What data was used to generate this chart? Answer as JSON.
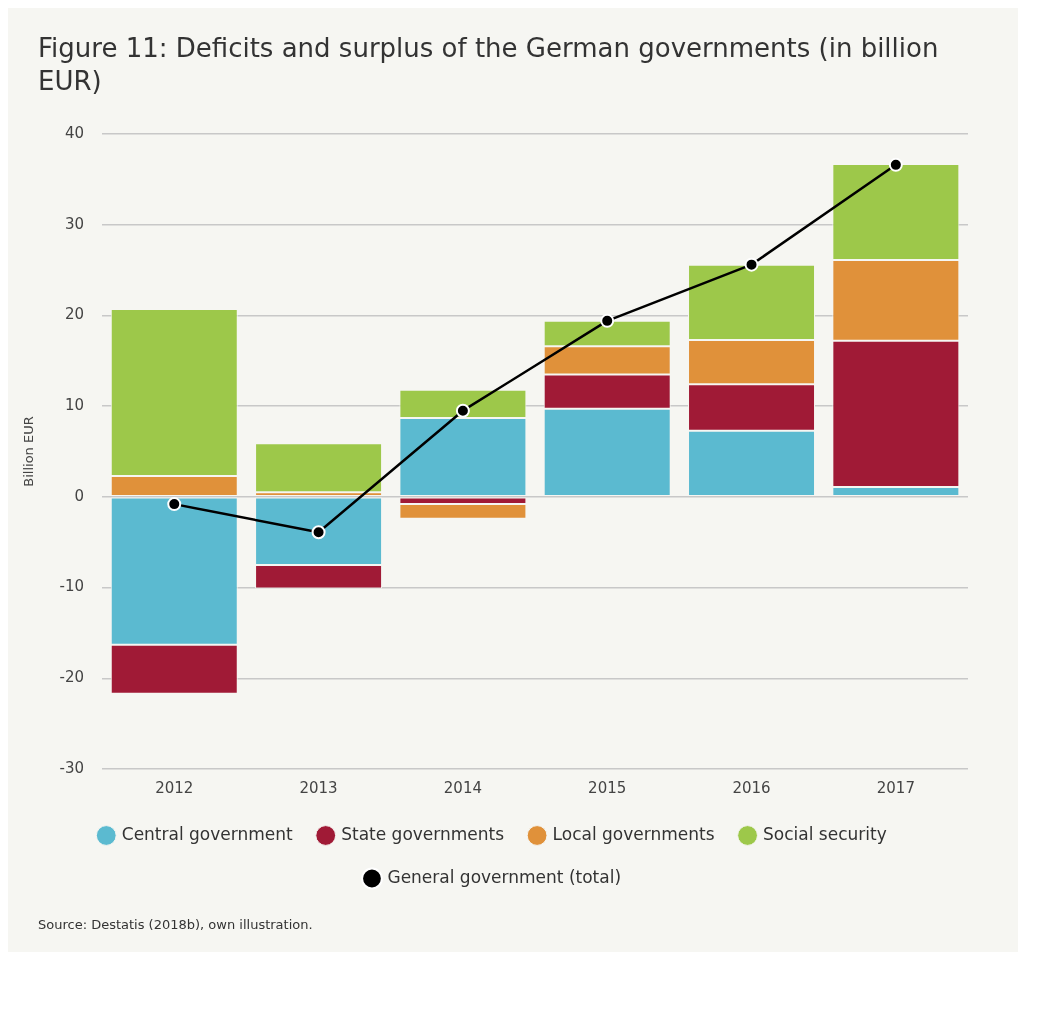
{
  "chart_data": {
    "type": "bar",
    "title": "Figure 11: Deficits and surplus of the German governments (in billion EUR)",
    "ylabel": "Billion EUR",
    "categories": [
      "2012",
      "2013",
      "2014",
      "2015",
      "2016",
      "2017"
    ],
    "stacked": true,
    "series": [
      {
        "name": "Central government",
        "color": "#5bbad0",
        "values": [
          -16.3,
          -7.5,
          8.7,
          9.7,
          7.3,
          1.1
        ]
      },
      {
        "name": "State governments",
        "color": "#a01a36",
        "values": [
          -5.4,
          -2.6,
          -0.8,
          3.8,
          5.1,
          16.1
        ]
      },
      {
        "name": "Local governments",
        "color": "#e0913a",
        "values": [
          2.3,
          0.5,
          -1.6,
          3.1,
          4.9,
          8.9
        ]
      },
      {
        "name": "Social security",
        "color": "#9dc84a",
        "values": [
          18.4,
          5.4,
          3.1,
          2.8,
          8.3,
          10.6
        ]
      },
      {
        "name": "General government (total)",
        "type": "line",
        "color": "#000000",
        "values": [
          -0.8,
          -3.9,
          9.5,
          19.4,
          25.6,
          36.6
        ]
      }
    ],
    "ylim": [
      -30,
      40
    ],
    "yticks": [
      -30,
      -20,
      -10,
      0,
      10,
      20,
      30,
      40
    ],
    "grid": "y",
    "legend": "bottom",
    "marker": "circle",
    "annotations": [
      "Source: Destatis (2018b), own illustration."
    ]
  }
}
